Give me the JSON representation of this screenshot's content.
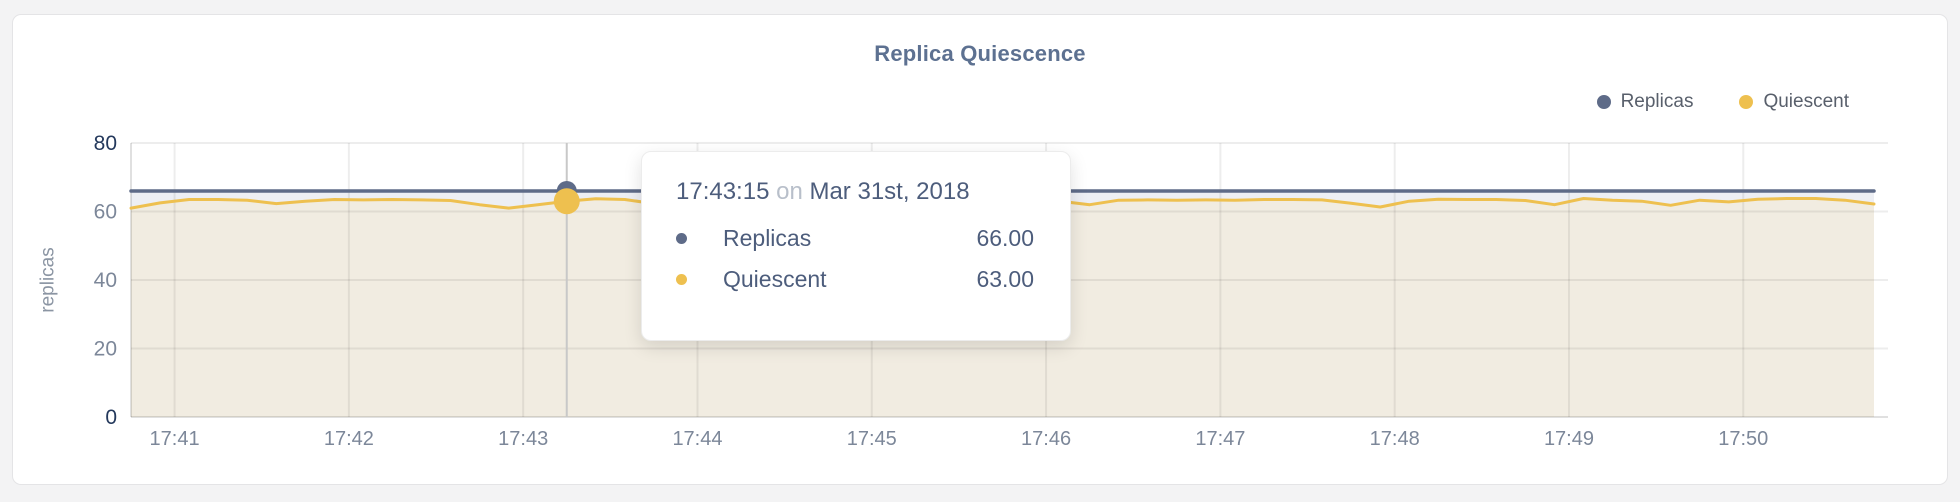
{
  "page": {
    "background": "#f3f3f4"
  },
  "card": {
    "background": "#ffffff",
    "border": "#e4e4e6"
  },
  "chart": {
    "title": "Replica Quiescence"
  },
  "colors": {
    "title": "#5d7191",
    "tick": "#7c8799",
    "tick_emphasis": "#24395c",
    "legend_text": "#585f6b",
    "grid_rgba": "rgba(0,0,0,0.07)",
    "axis_rgba": "rgba(0,0,0,0.12)",
    "crosshair": "#c8c8c8",
    "tooltip_text": "#4d5d7c",
    "tooltip_muted": "#b8bfca",
    "replicas": "#5e6b88",
    "quiescent": "#eec04f"
  },
  "tooltip": {
    "time": "17:43:15",
    "conjunction": "on",
    "date": "Mar 31st, 2018",
    "rows": [
      {
        "name": "Replicas",
        "value": "66.00",
        "color": "#5e6b88"
      },
      {
        "name": "Quiescent",
        "value": "63.00",
        "color": "#eec04f"
      }
    ]
  },
  "chart_data": {
    "type": "line",
    "title": "Replica Quiescence",
    "xlabel": "",
    "ylabel": "replicas",
    "ylim": [
      0,
      80
    ],
    "yticks": [
      0,
      20,
      40,
      60,
      80
    ],
    "xticks": [
      "17:41",
      "17:42",
      "17:43",
      "17:44",
      "17:45",
      "17:46",
      "17:47",
      "17:48",
      "17:49",
      "17:50"
    ],
    "grid": true,
    "legend_position": "top-right",
    "hover_index": 15,
    "x": [
      "17:40:45",
      "17:40:55",
      "17:41:05",
      "17:41:15",
      "17:41:25",
      "17:41:35",
      "17:41:45",
      "17:41:55",
      "17:42:05",
      "17:42:15",
      "17:42:25",
      "17:42:35",
      "17:42:45",
      "17:42:55",
      "17:43:05",
      "17:43:15",
      "17:43:25",
      "17:43:35",
      "17:43:45",
      "17:43:55",
      "17:44:05",
      "17:44:15",
      "17:44:25",
      "17:44:35",
      "17:44:45",
      "17:44:55",
      "17:45:05",
      "17:45:15",
      "17:45:25",
      "17:45:35",
      "17:45:45",
      "17:45:55",
      "17:46:05",
      "17:46:15",
      "17:46:25",
      "17:46:35",
      "17:46:45",
      "17:46:55",
      "17:47:05",
      "17:47:15",
      "17:47:25",
      "17:47:35",
      "17:47:45",
      "17:47:55",
      "17:48:05",
      "17:48:15",
      "17:48:25",
      "17:48:35",
      "17:48:45",
      "17:48:55",
      "17:49:05",
      "17:49:15",
      "17:49:25",
      "17:49:35",
      "17:49:45",
      "17:49:55",
      "17:50:05",
      "17:50:15",
      "17:50:25",
      "17:50:35",
      "17:50:45"
    ],
    "series": [
      {
        "name": "Replicas",
        "color": "#5e6b88",
        "fill": "#edeff4",
        "values": [
          66,
          66,
          66,
          66,
          66,
          66,
          66,
          66,
          66,
          66,
          66,
          66,
          66,
          66,
          66,
          66,
          66,
          66,
          66,
          66,
          66,
          66,
          66,
          66,
          66,
          66,
          66,
          66,
          66,
          66,
          66,
          66,
          66,
          66,
          66,
          66,
          66,
          66,
          66,
          66,
          66,
          66,
          66,
          66,
          66,
          66,
          66,
          66,
          66,
          66,
          66,
          66,
          66,
          66,
          66,
          66,
          66,
          66,
          66,
          66,
          66
        ]
      },
      {
        "name": "Quiescent",
        "color": "#eec04f",
        "fill": "#f1ece1",
        "values": [
          61.0,
          62.5,
          63.5,
          63.5,
          63.3,
          62.3,
          63.0,
          63.5,
          63.4,
          63.5,
          63.4,
          63.2,
          62.0,
          61.0,
          62.0,
          63.0,
          63.7,
          63.5,
          62.3,
          63.0,
          63.4,
          63.2,
          62.8,
          63.3,
          63.0,
          62.6,
          63.2,
          63.4,
          62.9,
          63.2,
          63.0,
          63.3,
          63.0,
          62.0,
          63.3,
          63.4,
          63.3,
          63.4,
          63.3,
          63.5,
          63.5,
          63.4,
          62.4,
          61.3,
          63.0,
          63.6,
          63.5,
          63.5,
          63.2,
          62.0,
          63.8,
          63.3,
          63.0,
          61.8,
          63.3,
          62.8,
          63.6,
          63.8,
          63.8,
          63.3,
          62.2
        ]
      }
    ]
  }
}
